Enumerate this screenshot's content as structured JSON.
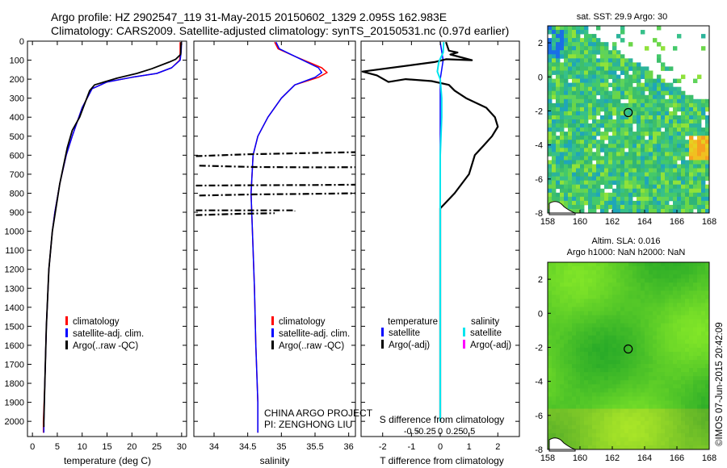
{
  "figure": {
    "title_line1": "Argo profile: HZ 2902547_119 31-May-2015 20150602_1329 2.095S 162.983E",
    "title_line2": "Climatology: CARS2009. Satellite-adjusted climatology: synTS_20150531.nc (0.97d earlier)",
    "credit": "©IMOS 07-Jun-2015 20:42:09",
    "project": "CHINA ARGO PROJECT",
    "pi": "PI: ZENGHONG LIU"
  },
  "colors": {
    "climatology": "#ff0000",
    "satellite": "#0000ff",
    "argo": "#000000",
    "satellite_salinity": "#00e5ee",
    "argo_salinity_adj": "#ff00ff"
  },
  "legends": {
    "profile": [
      "climatology",
      "satellite-adj. clim.",
      "Argo(..raw -QC)"
    ],
    "diff_temperature_title": "temperature",
    "diff_salinity_title": "salinity",
    "diff_entries": [
      "satellite",
      "Argo(-adj)"
    ]
  },
  "maps": {
    "sst_title": "sat. SST: 29.9 Argo: 30",
    "sla_title_line1": "Altim. SLA: 0.016",
    "sla_title_line2": "Argo h1000: NaN h2000: NaN",
    "x_ticks": [
      "158",
      "160",
      "162",
      "164",
      "166",
      "168"
    ],
    "y_ticks": [
      "2",
      "0",
      "-2",
      "-4",
      "-6",
      "-8"
    ],
    "lon_range": [
      158,
      168
    ],
    "lat_range": [
      -8,
      3
    ],
    "float_position": {
      "lon": 162.983,
      "lat": -2.095
    }
  },
  "chart_data": [
    {
      "type": "line",
      "panel": "temperature",
      "xlabel": "temperature (deg C)",
      "ylabel": "",
      "xlim": [
        -1,
        31
      ],
      "ylim": [
        2080,
        0
      ],
      "x_ticks": [
        0,
        5,
        10,
        15,
        20,
        25,
        30
      ],
      "y_ticks": [
        0,
        100,
        200,
        300,
        400,
        500,
        600,
        700,
        800,
        900,
        1000,
        1100,
        1200,
        1300,
        1400,
        1500,
        1600,
        1700,
        1800,
        1900,
        2000
      ],
      "series": [
        {
          "name": "climatology",
          "points": [
            [
              29.7,
              5
            ],
            [
              29.7,
              60
            ],
            [
              29.6,
              100
            ],
            [
              28,
              140
            ],
            [
              25,
              170
            ],
            [
              20,
              190
            ],
            [
              15,
              215
            ],
            [
              12,
              250
            ],
            [
              10,
              350
            ],
            [
              8,
              500
            ],
            [
              6.8,
              600
            ],
            [
              5.5,
              750
            ],
            [
              4.5,
              900
            ],
            [
              4,
              1000
            ],
            [
              3.3,
              1200
            ],
            [
              2.8,
              1500
            ],
            [
              2.5,
              1800
            ],
            [
              2.2,
              2000
            ],
            [
              2.2,
              2060
            ]
          ]
        },
        {
          "name": "satellite-adj. clim.",
          "points": [
            [
              30,
              5
            ],
            [
              29.9,
              60
            ],
            [
              29.7,
              100
            ],
            [
              28,
              140
            ],
            [
              25,
              170
            ],
            [
              20,
              190
            ],
            [
              15,
              215
            ],
            [
              12,
              250
            ],
            [
              10,
              350
            ],
            [
              8,
              500
            ],
            [
              6.8,
              600
            ],
            [
              5.5,
              750
            ],
            [
              4.5,
              900
            ],
            [
              4,
              1000
            ],
            [
              3.3,
              1200
            ],
            [
              2.8,
              1500
            ],
            [
              2.5,
              1800
            ],
            [
              2.3,
              2000
            ],
            [
              2.3,
              2060
            ]
          ]
        },
        {
          "name": "Argo(..raw -QC)",
          "points": [
            [
              29.9,
              5
            ],
            [
              29.8,
              70
            ],
            [
              28.8,
              95
            ],
            [
              27.5,
              110
            ],
            [
              24,
              145
            ],
            [
              21,
              170
            ],
            [
              17,
              195
            ],
            [
              12.5,
              230
            ],
            [
              11.5,
              260
            ],
            [
              10.5,
              330
            ],
            [
              9.5,
              400
            ],
            [
              8,
              470
            ],
            [
              7,
              560
            ],
            [
              5.5,
              750
            ],
            [
              4.6,
              900
            ],
            [
              4,
              1000
            ],
            [
              3.3,
              1200
            ],
            [
              2.8,
              1500
            ],
            [
              2.5,
              1800
            ],
            [
              2.3,
              2000
            ],
            [
              2.3,
              2030
            ]
          ]
        }
      ]
    },
    {
      "type": "line",
      "panel": "salinity",
      "xlabel": "salinity",
      "ylabel": "",
      "xlim": [
        33.7,
        36.1
      ],
      "ylim": [
        2080,
        0
      ],
      "x_ticks": [
        34,
        34.5,
        35,
        35.5,
        36
      ],
      "x_tick_labels": [
        "34",
        "34.5",
        "35",
        "35.5",
        "36"
      ],
      "series": [
        {
          "name": "climatology",
          "points": [
            [
              34.9,
              5
            ],
            [
              34.95,
              40
            ],
            [
              35.2,
              80
            ],
            [
              35.6,
              140
            ],
            [
              35.68,
              165
            ],
            [
              35.55,
              190
            ],
            [
              35.2,
              230
            ],
            [
              35,
              300
            ],
            [
              34.8,
              400
            ],
            [
              34.65,
              500
            ],
            [
              34.58,
              600
            ],
            [
              34.55,
              800
            ],
            [
              34.57,
              1000
            ],
            [
              34.6,
              1300
            ],
            [
              34.62,
              1600
            ],
            [
              34.65,
              1900
            ],
            [
              34.65,
              2060
            ]
          ]
        },
        {
          "name": "satellite-adj. clim.",
          "points": [
            [
              34.92,
              5
            ],
            [
              34.97,
              40
            ],
            [
              35.2,
              80
            ],
            [
              35.55,
              140
            ],
            [
              35.6,
              165
            ],
            [
              35.5,
              190
            ],
            [
              35.2,
              230
            ],
            [
              35,
              300
            ],
            [
              34.8,
              400
            ],
            [
              34.65,
              500
            ],
            [
              34.58,
              600
            ],
            [
              34.55,
              800
            ],
            [
              34.57,
              1000
            ],
            [
              34.6,
              1300
            ],
            [
              34.62,
              1600
            ],
            [
              34.65,
              1900
            ],
            [
              34.65,
              2060
            ]
          ]
        },
        {
          "name": "Argo(..raw -QC) segment 1",
          "points": [
            [
              33.73,
              605
            ],
            [
              34.5,
              595
            ],
            [
              35.5,
              588
            ],
            [
              36.1,
              584
            ]
          ]
        },
        {
          "name": "Argo(..raw -QC) segment 2",
          "points": [
            [
              33.78,
              655
            ],
            [
              34.6,
              662
            ],
            [
              35.5,
              664
            ],
            [
              36.1,
              663
            ]
          ]
        },
        {
          "name": "Argo(..raw -QC) segment 3",
          "points": [
            [
              33.73,
              760
            ],
            [
              34.5,
              758
            ],
            [
              35.5,
              757
            ],
            [
              36.1,
              755
            ]
          ]
        },
        {
          "name": "Argo(..raw -QC) segment 4",
          "points": [
            [
              33.78,
              812
            ],
            [
              34.6,
              806
            ],
            [
              35.5,
              803
            ],
            [
              36.1,
              800
            ]
          ]
        },
        {
          "name": "Argo(..raw -QC) segment 5",
          "points": [
            [
              33.73,
              890
            ],
            [
              34.6,
              890
            ],
            [
              35.2,
              890
            ],
            [
              35.2,
              895
            ]
          ]
        },
        {
          "name": "Argo(..raw -QC) segment 6",
          "points": [
            [
              33.73,
              915
            ],
            [
              34.4,
              908
            ],
            [
              34.9,
              905
            ]
          ]
        }
      ]
    },
    {
      "type": "line",
      "panel": "difference",
      "xlabel": "T difference from climatology",
      "x2label": "S difference from climatology",
      "ylabel": "",
      "xlim": [
        -2.75,
        2.75
      ],
      "ylim": [
        2080,
        0
      ],
      "x_ticks": [
        -2,
        -1,
        0,
        1,
        2
      ],
      "x2_ticks": [
        -0.5,
        -0.25,
        0,
        0.25,
        0.5
      ],
      "x2_tick_labels": [
        "-0.5",
        "-0.25",
        "0",
        "0.25",
        "0.5"
      ],
      "series": [
        {
          "name": "temperature satellite",
          "points": [
            [
              0,
              5
            ],
            [
              0.1,
              100
            ],
            [
              0,
              200
            ],
            [
              0,
              400
            ],
            [
              0,
              600
            ],
            [
              0,
              800
            ],
            [
              0,
              1000
            ],
            [
              0,
              1500
            ],
            [
              0,
              2000
            ]
          ]
        },
        {
          "name": "temperature Argo(-adj)",
          "points": [
            [
              0.2,
              5
            ],
            [
              0.3,
              50
            ],
            [
              0.6,
              60
            ],
            [
              0.35,
              70
            ],
            [
              1.1,
              100
            ],
            [
              0.2,
              95
            ],
            [
              -0.2,
              110
            ],
            [
              -2.7,
              160
            ],
            [
              -2.2,
              180
            ],
            [
              -1.8,
              215
            ],
            [
              -1.2,
              200
            ],
            [
              -0.3,
              210
            ],
            [
              0.3,
              230
            ],
            [
              0.5,
              260
            ],
            [
              0.9,
              300
            ],
            [
              1.6,
              350
            ],
            [
              1.9,
              400
            ],
            [
              2,
              450
            ],
            [
              1.8,
              500
            ],
            [
              1.5,
              550
            ],
            [
              1.2,
              600
            ],
            [
              1,
              700
            ],
            [
              0.5,
              800
            ],
            [
              0,
              880
            ],
            [
              0,
              1200
            ],
            [
              0,
              1500
            ],
            [
              0,
              2000
            ]
          ]
        },
        {
          "name": "salinity satellite",
          "points": [
            [
              0.12,
              5
            ],
            [
              0.1,
              60
            ],
            [
              -0.05,
              110
            ],
            [
              -0.1,
              160
            ],
            [
              0,
              200
            ],
            [
              0.05,
              300
            ],
            [
              0.05,
              400
            ],
            [
              0,
              600
            ],
            [
              0,
              1000
            ],
            [
              0,
              1500
            ],
            [
              0,
              2000
            ]
          ]
        }
      ]
    }
  ]
}
